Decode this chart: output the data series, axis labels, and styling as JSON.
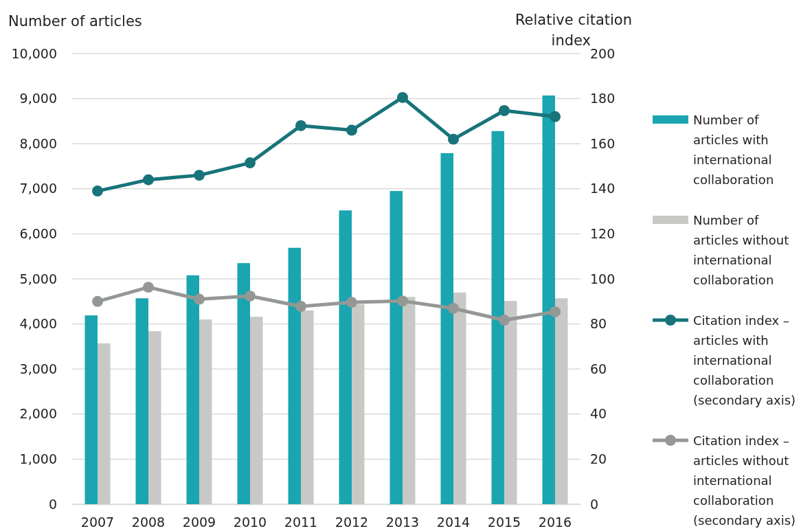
{
  "chart_data": {
    "type": "bar",
    "ylabel": "Number of articles",
    "y2label": "Relative citation index",
    "categories": [
      "2007",
      "2008",
      "2009",
      "2010",
      "2011",
      "2012",
      "2013",
      "2014",
      "2015",
      "2016"
    ],
    "series": [
      {
        "name": "Number of articles with international collaboration",
        "color": "#1aa5b0",
        "values": [
          4190,
          4570,
          5080,
          5350,
          5690,
          6520,
          6950,
          7790,
          8280,
          9070
        ]
      },
      {
        "name": "Number of articles without international collaboration",
        "color": "#c8c9c6",
        "values": [
          3570,
          3840,
          4100,
          4160,
          4300,
          4440,
          4600,
          4700,
          4510,
          4570
        ]
      },
      {
        "name": "Citation index – articles with international collaboration (secondary axis)",
        "type": "line",
        "axis": "y2",
        "color": "#17747a",
        "values": [
          139,
          144,
          146,
          151.5,
          168,
          166,
          180.5,
          162,
          174.7,
          172
        ]
      },
      {
        "name": "Citation index – articles without international collaboration (secondary axis)",
        "type": "line",
        "axis": "y2",
        "color": "#949894",
        "values": [
          90,
          96.3,
          91,
          92.4,
          87.8,
          89.6,
          90.2,
          86.9,
          81.7,
          85.4
        ]
      }
    ],
    "ylim": [
      0,
      10000
    ],
    "yticks": [
      {
        "value": 0,
        "label": "0"
      },
      {
        "value": 1000,
        "label": "1,000"
      },
      {
        "value": 2000,
        "label": "2,000"
      },
      {
        "value": 3000,
        "label": "3,000"
      },
      {
        "value": 4000,
        "label": "4,000"
      },
      {
        "value": 5000,
        "label": "5,000"
      },
      {
        "value": 6000,
        "label": "6,000"
      },
      {
        "value": 7000,
        "label": "7,000"
      },
      {
        "value": 8000,
        "label": "8,000"
      },
      {
        "value": 9000,
        "label": "9,000"
      },
      {
        "value": 10000,
        "label": "10,000"
      }
    ],
    "y2lim": [
      0,
      200
    ],
    "y2ticks": [
      0,
      20,
      40,
      60,
      80,
      100,
      120,
      140,
      160,
      180,
      200
    ],
    "grid": "y",
    "legend": "right",
    "marker": "circle"
  }
}
